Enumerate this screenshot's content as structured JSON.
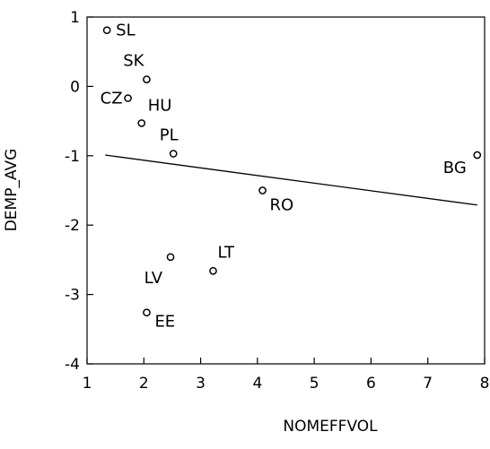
{
  "chart_data": {
    "type": "scatter",
    "xlabel": "NOMEFFVOL",
    "ylabel": "DEMP_AVG",
    "xlim": [
      1,
      8
    ],
    "ylim": [
      -4,
      1
    ],
    "x_ticks": [
      1,
      2,
      3,
      4,
      5,
      6,
      7,
      8
    ],
    "y_ticks": [
      1,
      0,
      -1,
      -2,
      -3,
      -4
    ],
    "grid": false,
    "points": [
      {
        "label": "SL",
        "x": 1.35,
        "y": 0.81
      },
      {
        "label": "SK",
        "x": 2.05,
        "y": 0.1
      },
      {
        "label": "CZ",
        "x": 1.72,
        "y": -0.17
      },
      {
        "label": "HU",
        "x": 1.96,
        "y": -0.53
      },
      {
        "label": "PL",
        "x": 2.52,
        "y": -0.97
      },
      {
        "label": "BG",
        "x": 7.87,
        "y": -0.99
      },
      {
        "label": "RO",
        "x": 4.09,
        "y": -1.5
      },
      {
        "label": "LT",
        "x": 3.22,
        "y": -2.66
      },
      {
        "label": "LV",
        "x": 2.47,
        "y": -2.46
      },
      {
        "label": "EE",
        "x": 2.05,
        "y": -3.26
      }
    ],
    "fit_line": {
      "x": [
        1.32,
        7.87
      ],
      "y": [
        -0.99,
        -1.71
      ]
    }
  }
}
